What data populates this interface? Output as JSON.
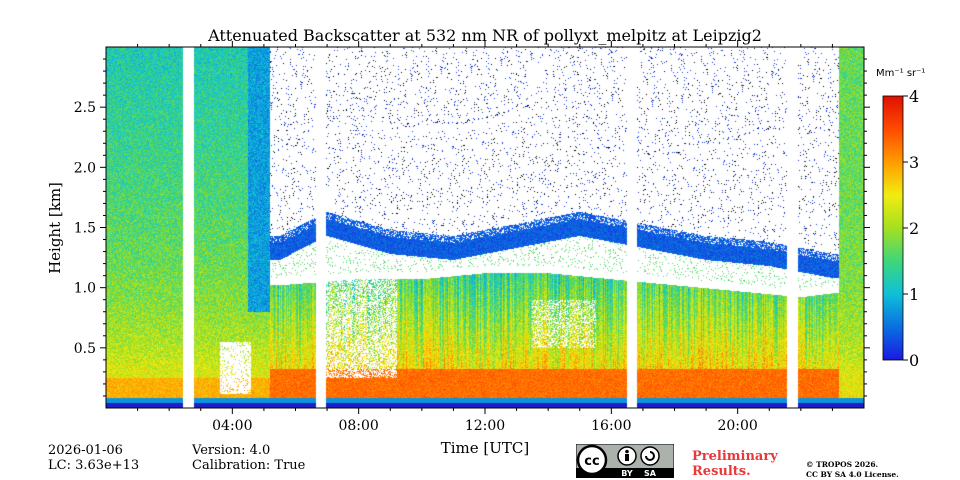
{
  "chart_data": {
    "type": "heatmap",
    "title": "Attenuated Backscatter at 532 nm NR of pollyxt_melpitz at Leipzig2",
    "xlabel": "Time [UTC]",
    "ylabel": "Height [km]",
    "x_range_hours": [
      0,
      24
    ],
    "y_range_km": [
      0,
      3.0
    ],
    "x_ticks": [
      {
        "value": 4,
        "label": "04:00"
      },
      {
        "value": 8,
        "label": "08:00"
      },
      {
        "value": 12,
        "label": "12:00"
      },
      {
        "value": 16,
        "label": "16:00"
      },
      {
        "value": 20,
        "label": "20:00"
      }
    ],
    "y_ticks": [
      {
        "value": 0.5,
        "label": "0.5"
      },
      {
        "value": 1.0,
        "label": "1.0"
      },
      {
        "value": 1.5,
        "label": "1.5"
      },
      {
        "value": 2.0,
        "label": "2.0"
      },
      {
        "value": 2.5,
        "label": "2.5"
      }
    ],
    "colorbar": {
      "unit": "Mm⁻¹ sr⁻¹",
      "range": [
        0,
        4
      ],
      "ticks": [
        {
          "value": 0,
          "label": "0"
        },
        {
          "value": 1,
          "label": "1"
        },
        {
          "value": 2,
          "label": "2"
        },
        {
          "value": 3,
          "label": "3"
        },
        {
          "value": 4,
          "label": "4"
        }
      ],
      "colors": [
        "#1a1ae0",
        "#0b6fe0",
        "#0ec0d8",
        "#3fd67a",
        "#a4e020",
        "#f2ec10",
        "#ff9c00",
        "#ff4a00",
        "#e01000"
      ]
    },
    "data_gaps_hours": [
      [
        2.45,
        2.8
      ],
      [
        6.65,
        6.95
      ],
      [
        16.5,
        16.8
      ],
      [
        21.55,
        21.9
      ]
    ],
    "cloud_layer_top_km": [
      {
        "t": 5.5,
        "h": 1.35
      },
      {
        "t": 7,
        "h": 1.55
      },
      {
        "t": 9,
        "h": 1.4
      },
      {
        "t": 11,
        "h": 1.35
      },
      {
        "t": 13,
        "h": 1.45
      },
      {
        "t": 15,
        "h": 1.55
      },
      {
        "t": 17,
        "h": 1.45
      },
      {
        "t": 19,
        "h": 1.35
      },
      {
        "t": 21,
        "h": 1.3
      },
      {
        "t": 23,
        "h": 1.2
      }
    ],
    "cloud_layer_base_km": [
      {
        "t": 5.5,
        "h": 1.05
      },
      {
        "t": 8,
        "h": 1.1
      },
      {
        "t": 10,
        "h": 1.1
      },
      {
        "t": 12,
        "h": 1.15
      },
      {
        "t": 14,
        "h": 1.15
      },
      {
        "t": 16,
        "h": 1.1
      },
      {
        "t": 18,
        "h": 1.05
      },
      {
        "t": 20,
        "h": 1.0
      },
      {
        "t": 22,
        "h": 0.95
      },
      {
        "t": 23.5,
        "h": 1.0
      }
    ]
  },
  "footer": {
    "date": "2026-01-06",
    "lc": "LC: 3.63e+13",
    "version": "Version: 4.0",
    "calibration": "Calibration: True",
    "preliminary_line1": "Preliminary",
    "preliminary_line2": "Results.",
    "copyright_line1": "© TROPOS 2026.",
    "copyright_line2": "CC BY SA 4.0 License.",
    "cc_badge_text": {
      "by": "BY",
      "sa": "SA"
    }
  }
}
